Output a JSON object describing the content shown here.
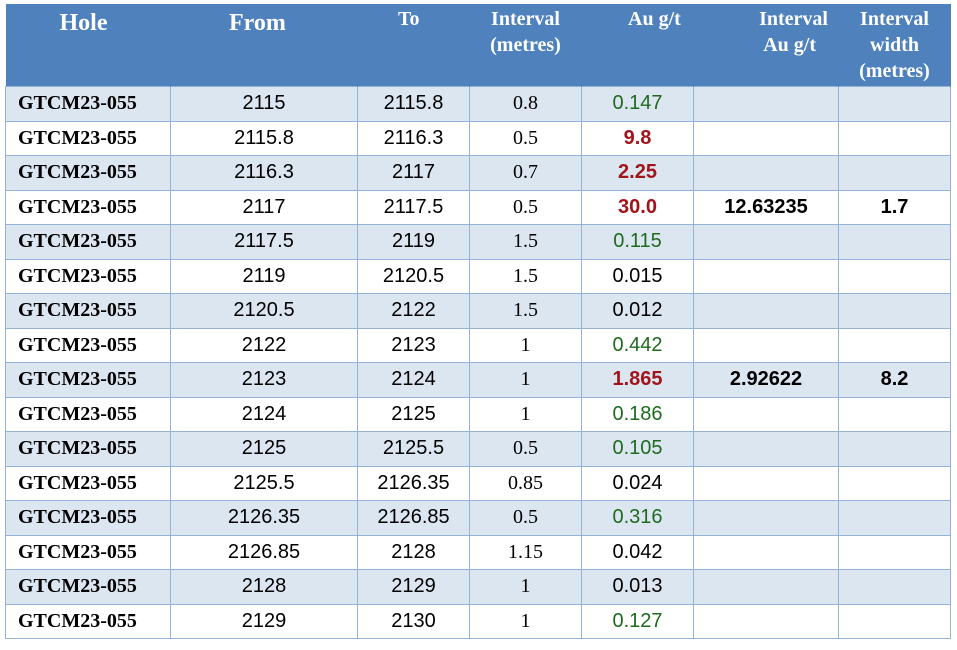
{
  "headers": {
    "hole": "Hole",
    "from": "From",
    "to": "To",
    "interval_line1": "Interval",
    "interval_line2": "(metres)",
    "au": "Au g/t",
    "interval_au_line1": "Interval",
    "interval_au_line2": "Au g/t",
    "width_line1": "Interval",
    "width_line2": "width",
    "width_line3": "(metres)"
  },
  "colors": {
    "header_bg": "#4f81bd",
    "band_bg": "#dce6f1",
    "au_low": "#1e6b1e",
    "au_high": "#a0151c"
  },
  "rows": [
    {
      "hole": "GTCM23-055",
      "from": "2115",
      "to": "2115.8",
      "interval": "0.8",
      "au": "0.147",
      "au_color": "green",
      "interval_au": "",
      "width": ""
    },
    {
      "hole": "GTCM23-055",
      "from": "2115.8",
      "to": "2116.3",
      "interval": "0.5",
      "au": "9.8",
      "au_color": "red",
      "interval_au": "",
      "width": ""
    },
    {
      "hole": "GTCM23-055",
      "from": "2116.3",
      "to": "2117",
      "interval": "0.7",
      "au": "2.25",
      "au_color": "red",
      "interval_au": "",
      "width": ""
    },
    {
      "hole": "GTCM23-055",
      "from": "2117",
      "to": "2117.5",
      "interval": "0.5",
      "au": "30.0",
      "au_color": "red",
      "interval_au": "12.63235",
      "width": "1.7"
    },
    {
      "hole": "GTCM23-055",
      "from": "2117.5",
      "to": "2119",
      "interval": "1.5",
      "au": "0.115",
      "au_color": "green",
      "interval_au": "",
      "width": ""
    },
    {
      "hole": "GTCM23-055",
      "from": "2119",
      "to": "2120.5",
      "interval": "1.5",
      "au": "0.015",
      "au_color": "black",
      "interval_au": "",
      "width": ""
    },
    {
      "hole": "GTCM23-055",
      "from": "2120.5",
      "to": "2122",
      "interval": "1.5",
      "au": "0.012",
      "au_color": "black",
      "interval_au": "",
      "width": ""
    },
    {
      "hole": "GTCM23-055",
      "from": "2122",
      "to": "2123",
      "interval": "1",
      "au": "0.442",
      "au_color": "green",
      "interval_au": "",
      "width": ""
    },
    {
      "hole": "GTCM23-055",
      "from": "2123",
      "to": "2124",
      "interval": "1",
      "au": "1.865",
      "au_color": "red",
      "interval_au": "2.92622",
      "width": "8.2"
    },
    {
      "hole": "GTCM23-055",
      "from": "2124",
      "to": "2125",
      "interval": "1",
      "au": "0.186",
      "au_color": "green",
      "interval_au": "",
      "width": ""
    },
    {
      "hole": "GTCM23-055",
      "from": "2125",
      "to": "2125.5",
      "interval": "0.5",
      "au": "0.105",
      "au_color": "green",
      "interval_au": "",
      "width": ""
    },
    {
      "hole": "GTCM23-055",
      "from": "2125.5",
      "to": "2126.35",
      "interval": "0.85",
      "au": "0.024",
      "au_color": "black",
      "interval_au": "",
      "width": ""
    },
    {
      "hole": "GTCM23-055",
      "from": "2126.35",
      "to": "2126.85",
      "interval": "0.5",
      "au": "0.316",
      "au_color": "green",
      "interval_au": "",
      "width": ""
    },
    {
      "hole": "GTCM23-055",
      "from": "2126.85",
      "to": "2128",
      "interval": "1.15",
      "au": "0.042",
      "au_color": "black",
      "interval_au": "",
      "width": ""
    },
    {
      "hole": "GTCM23-055",
      "from": "2128",
      "to": "2129",
      "interval": "1",
      "au": "0.013",
      "au_color": "black",
      "interval_au": "",
      "width": ""
    },
    {
      "hole": "GTCM23-055",
      "from": "2129",
      "to": "2130",
      "interval": "1",
      "au": "0.127",
      "au_color": "green",
      "interval_au": "",
      "width": ""
    }
  ]
}
